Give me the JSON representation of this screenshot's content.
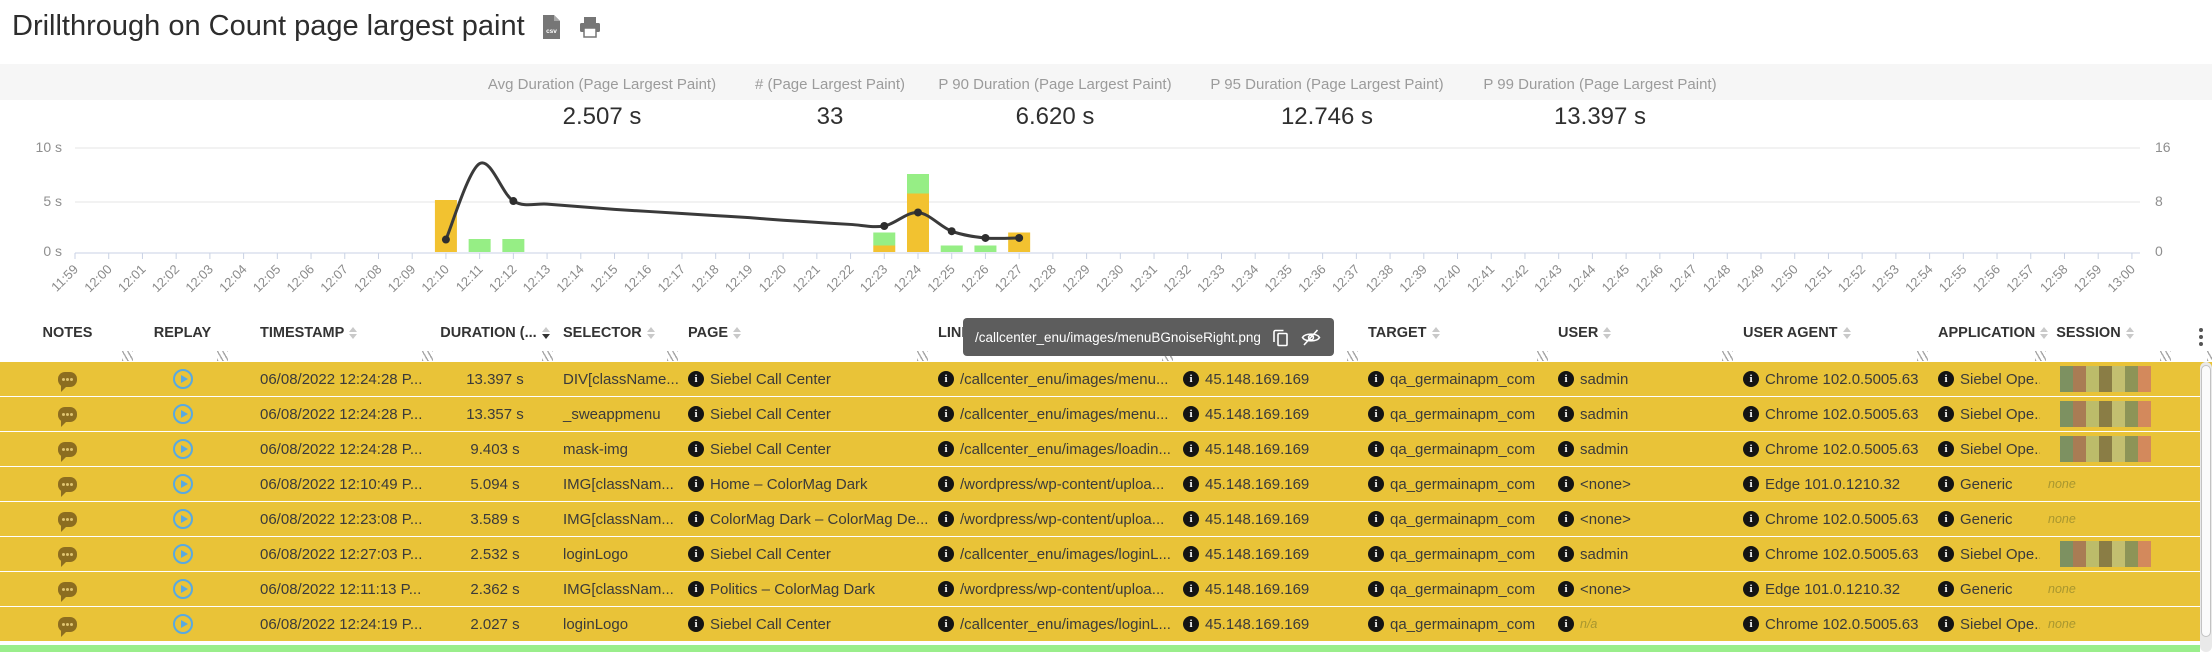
{
  "page": {
    "title": "Drillthrough on Count page largest paint",
    "csv_icon_label": "csv"
  },
  "stats": [
    {
      "label": "Avg Duration (Page Largest Paint)",
      "value": "2.507 s"
    },
    {
      "label": "# (Page Largest Paint)",
      "value": "33"
    },
    {
      "label": "P 90 Duration (Page Largest Paint)",
      "value": "6.620 s"
    },
    {
      "label": "P 95 Duration (Page Largest Paint)",
      "value": "12.746 s"
    },
    {
      "label": "P 99 Duration (Page Largest Paint)",
      "value": "13.397 s"
    }
  ],
  "chart_data": {
    "type": "bar+line (stacked count bars, avg-duration line)",
    "x_categories": [
      "11:59",
      "12:00",
      "12:01",
      "12:02",
      "12:03",
      "12:04",
      "12:05",
      "12:06",
      "12:07",
      "12:08",
      "12:09",
      "12:10",
      "12:11",
      "12:12",
      "12:13",
      "12:14",
      "12:15",
      "12:16",
      "12:17",
      "12:18",
      "12:19",
      "12:20",
      "12:21",
      "12:22",
      "12:23",
      "12:24",
      "12:25",
      "12:26",
      "12:27",
      "12:28",
      "12:29",
      "12:30",
      "12:31",
      "12:32",
      "12:33",
      "12:34",
      "12:35",
      "12:36",
      "12:37",
      "12:38",
      "12:39",
      "12:40",
      "12:41",
      "12:42",
      "12:43",
      "12:44",
      "12:45",
      "12:46",
      "12:47",
      "12:48",
      "12:49",
      "12:50",
      "12:51",
      "12:52",
      "12:53",
      "12:54",
      "12:55",
      "12:56",
      "12:57",
      "12:58",
      "12:59",
      "13:00"
    ],
    "left_axis": {
      "tick_labels": [
        "0 s",
        "5 s",
        "10 s"
      ],
      "max_seconds": 10
    },
    "right_axis": {
      "tick_labels": [
        "0",
        "8",
        "16"
      ],
      "max_count": 16
    },
    "grid": "horizontal only",
    "legend": "none",
    "bars": [
      {
        "time": "12:10",
        "yellow": 8,
        "green": 0
      },
      {
        "time": "12:11",
        "yellow": 0,
        "green": 2
      },
      {
        "time": "12:12",
        "yellow": 0,
        "green": 2
      },
      {
        "time": "12:23",
        "yellow": 1,
        "green": 2
      },
      {
        "time": "12:24",
        "yellow": 9,
        "green": 3
      },
      {
        "time": "12:25",
        "yellow": 0,
        "green": 1
      },
      {
        "time": "12:26",
        "yellow": 0,
        "green": 1
      },
      {
        "time": "12:27",
        "yellow": 3,
        "green": 0
      }
    ],
    "line_seconds": [
      {
        "time": "12:10",
        "value": 1.2
      },
      {
        "time": "12:11",
        "value": 8.5
      },
      {
        "time": "12:12",
        "value": 4.9
      },
      {
        "time": "12:13",
        "value": 4.6
      },
      {
        "time": "12:14",
        "value": 4.35
      },
      {
        "time": "12:15",
        "value": 4.1
      },
      {
        "time": "12:16",
        "value": 3.9
      },
      {
        "time": "12:17",
        "value": 3.7
      },
      {
        "time": "12:18",
        "value": 3.5
      },
      {
        "time": "12:19",
        "value": 3.3
      },
      {
        "time": "12:20",
        "value": 3.05
      },
      {
        "time": "12:21",
        "value": 2.85
      },
      {
        "time": "12:22",
        "value": 2.65
      },
      {
        "time": "12:23",
        "value": 2.5
      },
      {
        "time": "12:24",
        "value": 3.8
      },
      {
        "time": "12:25",
        "value": 2.0
      },
      {
        "time": "12:26",
        "value": 1.35
      },
      {
        "time": "12:27",
        "value": 1.35
      }
    ],
    "line_markers": [
      "12:10",
      "12:12",
      "12:23",
      "12:24",
      "12:25",
      "12:26",
      "12:27"
    ],
    "colors": {
      "bar_yellow": "#f2c230",
      "bar_green": "#96ee85",
      "line": "#3a3a3a"
    }
  },
  "tooltip": {
    "text": "/callcenter_enu/images/menuBGnoiseRight.png"
  },
  "icons": {
    "info_glyph": "i"
  },
  "table": {
    "columns": [
      {
        "key": "notes",
        "label": "NOTES",
        "sortable": false
      },
      {
        "key": "replay",
        "label": "REPLAY",
        "sortable": false
      },
      {
        "key": "timestamp",
        "label": "TIMESTAMP",
        "sortable": true
      },
      {
        "key": "duration",
        "label": "DURATION (...",
        "sortable": true,
        "sort": "desc"
      },
      {
        "key": "selector",
        "label": "SELECTOR",
        "sortable": true
      },
      {
        "key": "page",
        "label": "PAGE",
        "sortable": true
      },
      {
        "key": "link",
        "label": "LINK",
        "sortable": true
      },
      {
        "key": "ip",
        "label": "",
        "sortable": false
      },
      {
        "key": "target",
        "label": "TARGET",
        "sortable": true
      },
      {
        "key": "user",
        "label": "USER",
        "sortable": true
      },
      {
        "key": "useragent",
        "label": "USER AGENT",
        "sortable": true
      },
      {
        "key": "application",
        "label": "APPLICATION",
        "sortable": true
      },
      {
        "key": "session",
        "label": "SESSION",
        "sortable": true
      },
      {
        "key": "menu",
        "label": "",
        "sortable": false
      }
    ],
    "session_none_label": "none",
    "session_palette": [
      "#7d9161",
      "#a97c54",
      "#bcbc6a",
      "#8a7d45",
      "#c3bf70",
      "#8d9457",
      "#d3895c"
    ],
    "row_bg": "#e9c338",
    "rows": [
      {
        "timestamp": "06/08/2022 12:24:28 P...",
        "duration": "13.397 s",
        "selector": "DIV[className...",
        "page": "Siebel Call Center",
        "link": "/callcenter_enu/images/menu...",
        "ip": "45.148.169.169",
        "target": "qa_germainapm_com",
        "user": "sadmin",
        "user_muted": false,
        "useragent": "Chrome 102.0.5005.63",
        "application": "Siebel Ope...",
        "session": "strip"
      },
      {
        "timestamp": "06/08/2022 12:24:28 P...",
        "duration": "13.357 s",
        "selector": "_sweappmenu",
        "page": "Siebel Call Center",
        "link": "/callcenter_enu/images/menu...",
        "ip": "45.148.169.169",
        "target": "qa_germainapm_com",
        "user": "sadmin",
        "user_muted": false,
        "useragent": "Chrome 102.0.5005.63",
        "application": "Siebel Ope...",
        "session": "strip"
      },
      {
        "timestamp": "06/08/2022 12:24:28 P...",
        "duration": "9.403 s",
        "selector": "mask-img",
        "page": "Siebel Call Center",
        "link": "/callcenter_enu/images/loadin...",
        "ip": "45.148.169.169",
        "target": "qa_germainapm_com",
        "user": "sadmin",
        "user_muted": false,
        "useragent": "Chrome 102.0.5005.63",
        "application": "Siebel Ope...",
        "session": "strip"
      },
      {
        "timestamp": "06/08/2022 12:10:49 P...",
        "duration": "5.094 s",
        "selector": "IMG[classNam...",
        "page": "Home – ColorMag Dark",
        "link": "/wordpress/wp-content/uploa...",
        "ip": "45.148.169.169",
        "target": "qa_germainapm_com",
        "user": "<none>",
        "user_muted": false,
        "useragent": "Edge 101.0.1210.32",
        "application": "Generic",
        "session": "none"
      },
      {
        "timestamp": "06/08/2022 12:23:08 P...",
        "duration": "3.589 s",
        "selector": "IMG[classNam...",
        "page": "ColorMag Dark – ColorMag De...",
        "link": "/wordpress/wp-content/uploa...",
        "ip": "45.148.169.169",
        "target": "qa_germainapm_com",
        "user": "<none>",
        "user_muted": false,
        "useragent": "Chrome 102.0.5005.63",
        "application": "Generic",
        "session": "none"
      },
      {
        "timestamp": "06/08/2022 12:27:03 P...",
        "duration": "2.532 s",
        "selector": "loginLogo",
        "page": "Siebel Call Center",
        "link": "/callcenter_enu/images/loginL...",
        "ip": "45.148.169.169",
        "target": "qa_germainapm_com",
        "user": "sadmin",
        "user_muted": false,
        "useragent": "Chrome 102.0.5005.63",
        "application": "Siebel Ope...",
        "session": "strip"
      },
      {
        "timestamp": "06/08/2022 12:11:13 P...",
        "duration": "2.362 s",
        "selector": "IMG[classNam...",
        "page": "Politics – ColorMag Dark",
        "link": "/wordpress/wp-content/uploa...",
        "ip": "45.148.169.169",
        "target": "qa_germainapm_com",
        "user": "<none>",
        "user_muted": false,
        "useragent": "Edge 101.0.1210.32",
        "application": "Generic",
        "session": "none"
      },
      {
        "timestamp": "06/08/2022 12:24:19 P...",
        "duration": "2.027 s",
        "selector": "loginLogo",
        "page": "Siebel Call Center",
        "link": "/callcenter_enu/images/loginL...",
        "ip": "45.148.169.169",
        "target": "qa_germainapm_com",
        "user": "n/a",
        "user_muted": true,
        "useragent": "Chrome 102.0.5005.63",
        "application": "Siebel Ope...",
        "session": "none"
      }
    ]
  }
}
